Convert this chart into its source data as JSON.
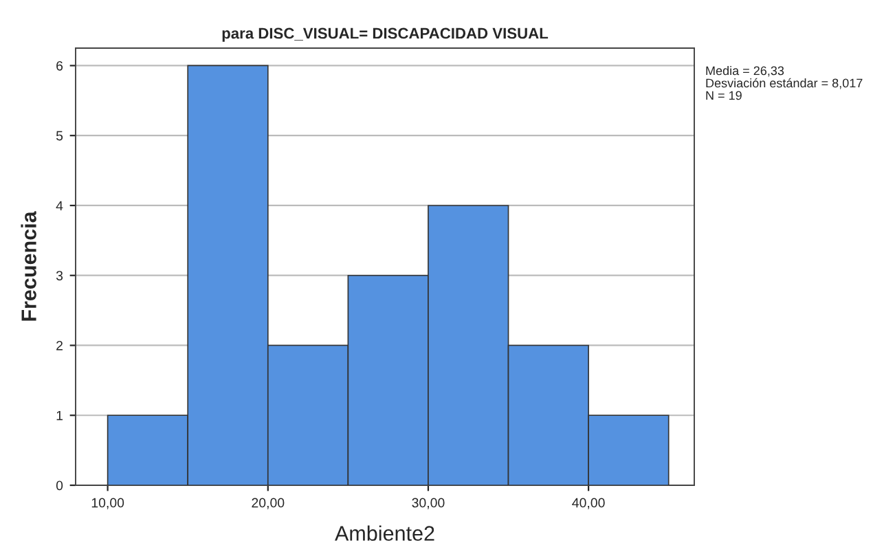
{
  "chart_data": {
    "type": "histogram",
    "title": "para DISC_VISUAL= DISCAPACIDAD VISUAL",
    "xlabel": "Ambiente2",
    "ylabel": "Frecuencia",
    "bins": [
      10,
      15,
      20,
      25,
      30,
      35,
      40,
      45
    ],
    "values": [
      1,
      6,
      2,
      3,
      4,
      2,
      1
    ],
    "color": "#5592e0",
    "xlim": [
      8,
      46.6
    ],
    "ylim": [
      0,
      6.25
    ],
    "xticks": [
      {
        "value": 10,
        "label": "10,00"
      },
      {
        "value": 20,
        "label": "20,00"
      },
      {
        "value": 30,
        "label": "30,00"
      },
      {
        "value": 40,
        "label": "40,00"
      }
    ],
    "yticks": [
      0,
      1,
      2,
      3,
      4,
      5,
      6
    ],
    "grid": "y",
    "annotations": [
      "Media = 26,33",
      "Desviación estándar = 8,017",
      "N = 19"
    ]
  }
}
